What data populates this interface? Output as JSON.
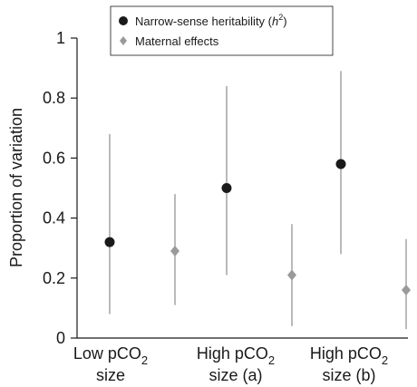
{
  "chart_data": {
    "type": "scatter",
    "ylabel": "Proportion of variation",
    "ylim": [
      0,
      1
    ],
    "yticks": [
      0,
      0.2,
      0.4,
      0.6,
      0.8,
      1
    ],
    "ytick_labels": [
      "0",
      "0.2",
      "0.4",
      "0.6",
      "0.8",
      "1"
    ],
    "categories": [
      {
        "line1": "Low pCO",
        "line1_sub": "2",
        "line2": "size"
      },
      {
        "line1": "High pCO",
        "line1_sub": "2",
        "line2": "size (a)"
      },
      {
        "line1": "High pCO",
        "line1_sub": "2",
        "line2": "size (b)"
      }
    ],
    "legend_position": "top-right",
    "series": [
      {
        "name": "Narrow-sense heritability (h2)",
        "legend_main": "Narrow-sense heritability (",
        "legend_italic": "h",
        "legend_sup": "2",
        "legend_close": ")",
        "marker": "circle",
        "color": "#1a1a1a",
        "values": [
          0.32,
          0.5,
          0.58
        ],
        "lower": [
          0.08,
          0.21,
          0.28
        ],
        "upper": [
          0.68,
          0.84,
          0.89
        ]
      },
      {
        "name": "Maternal effects",
        "legend_main": "Maternal effects",
        "marker": "diamond",
        "color": "#9a9a9a",
        "values": [
          0.29,
          0.21,
          0.16
        ],
        "lower": [
          0.11,
          0.04,
          0.03
        ],
        "upper": [
          0.48,
          0.38,
          0.33
        ]
      }
    ],
    "errorbar_color": "#8c8c8c"
  }
}
